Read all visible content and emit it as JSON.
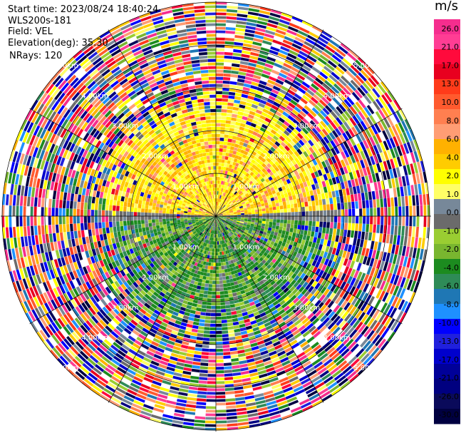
{
  "header": {
    "start_time": "Start time: 2023/08/24 18:40:24",
    "instrument": "WLS200s-181",
    "field": "Field: VEL",
    "elevation": "Elevation(deg): 35.30",
    "nrays": "NRays: 120"
  },
  "colorbar": {
    "unit": "m/s",
    "ticks": [
      "26.0",
      "21.0",
      "17.0",
      "13.0",
      "10.0",
      "8.0",
      "6.0",
      "4.0",
      "2.0",
      "1.0",
      "0.0",
      "-1.0",
      "-2.0",
      "-4.0",
      "-6.0",
      "-8.0",
      "-10.0",
      "-13.0",
      "-17.0",
      "-21.0",
      "-26.0",
      "-30.0"
    ],
    "colors": [
      "#f52d8e",
      "#ff3d94",
      "#ff0a3c",
      "#e8001f",
      "#ff3b1a",
      "#ff5a2e",
      "#ff7f50",
      "#ff9d74",
      "#ffb100",
      "#ffcc00",
      "#ffff00",
      "#ffff66",
      "#778899",
      "#6b6b6b",
      "#9acd32",
      "#79b62f",
      "#1c8b1f",
      "#2e8b57",
      "#1f77b4",
      "#1e90ff",
      "#0000ff",
      "#2020dd",
      "#0000cd",
      "#000099",
      "#000080",
      "#0a0a5a",
      "#000040"
    ]
  },
  "chart_data": {
    "type": "heatmap",
    "projection": "polar PPI",
    "field": "VEL",
    "units": "m/s",
    "value_range": [
      -30.0,
      26.0
    ],
    "nrays": 120,
    "elevation_deg": 35.3,
    "range_ring_labels": [
      "1.00km",
      "2.00km",
      "3.00km",
      "4.00km",
      "5.00km"
    ],
    "spoke_angles_deg": [
      0,
      30,
      60,
      90,
      120,
      150,
      180,
      210,
      240,
      270,
      300,
      330
    ],
    "velocity_pattern": {
      "near_field_north": "positive 1-6 m/s (yellow/orange)",
      "near_field_south": "negative -2 to -10 m/s (green)",
      "far_field": "noise, full color range"
    }
  }
}
